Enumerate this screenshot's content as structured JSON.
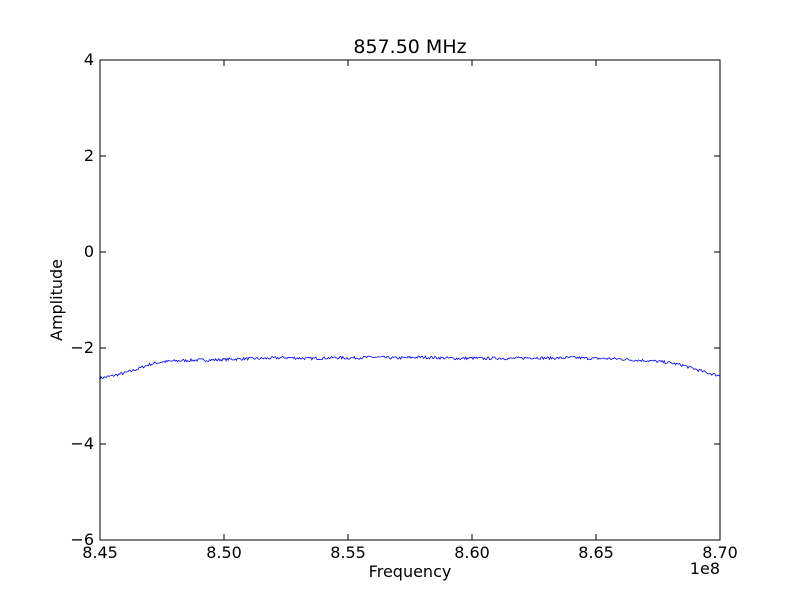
{
  "chart_data": {
    "type": "line",
    "title": "857.50 MHz",
    "xlabel": "Frequency",
    "ylabel": "Amplitude",
    "x_offset_label": "1e8",
    "xlim": [
      8.45,
      8.7
    ],
    "ylim": [
      -6,
      4
    ],
    "x_ticks": [
      8.45,
      8.5,
      8.55,
      8.6,
      8.65,
      8.7
    ],
    "x_tick_labels": [
      "8.45",
      "8.50",
      "8.55",
      "8.60",
      "8.65",
      "8.70"
    ],
    "y_ticks": [
      -6,
      -4,
      -2,
      0,
      2,
      4
    ],
    "y_tick_labels": [
      "−6",
      "−4",
      "−2",
      "0",
      "2",
      "4"
    ],
    "grid": false,
    "line_color": "#0000ff",
    "series": [
      {
        "x": [
          8.45,
          8.455,
          8.46,
          8.465,
          8.47,
          8.475,
          8.48,
          8.485,
          8.49,
          8.495,
          8.5,
          8.505,
          8.51,
          8.515,
          8.52,
          8.525,
          8.53,
          8.535,
          8.54,
          8.545,
          8.55,
          8.555,
          8.56,
          8.565,
          8.57,
          8.575,
          8.58,
          8.585,
          8.59,
          8.595,
          8.6,
          8.605,
          8.61,
          8.615,
          8.62,
          8.625,
          8.63,
          8.635,
          8.64,
          8.645,
          8.65,
          8.655,
          8.66,
          8.665,
          8.67,
          8.675,
          8.68,
          8.685,
          8.69,
          8.695,
          8.7
        ],
        "y": [
          -2.63,
          -2.58,
          -2.52,
          -2.44,
          -2.34,
          -2.29,
          -2.27,
          -2.26,
          -2.25,
          -2.25,
          -2.24,
          -2.23,
          -2.22,
          -2.22,
          -2.21,
          -2.2,
          -2.21,
          -2.22,
          -2.21,
          -2.2,
          -2.21,
          -2.2,
          -2.19,
          -2.2,
          -2.21,
          -2.2,
          -2.19,
          -2.2,
          -2.21,
          -2.22,
          -2.21,
          -2.22,
          -2.21,
          -2.22,
          -2.21,
          -2.2,
          -2.21,
          -2.21,
          -2.2,
          -2.21,
          -2.22,
          -2.22,
          -2.23,
          -2.25,
          -2.26,
          -2.28,
          -2.31,
          -2.36,
          -2.44,
          -2.52,
          -2.58
        ]
      }
    ]
  }
}
